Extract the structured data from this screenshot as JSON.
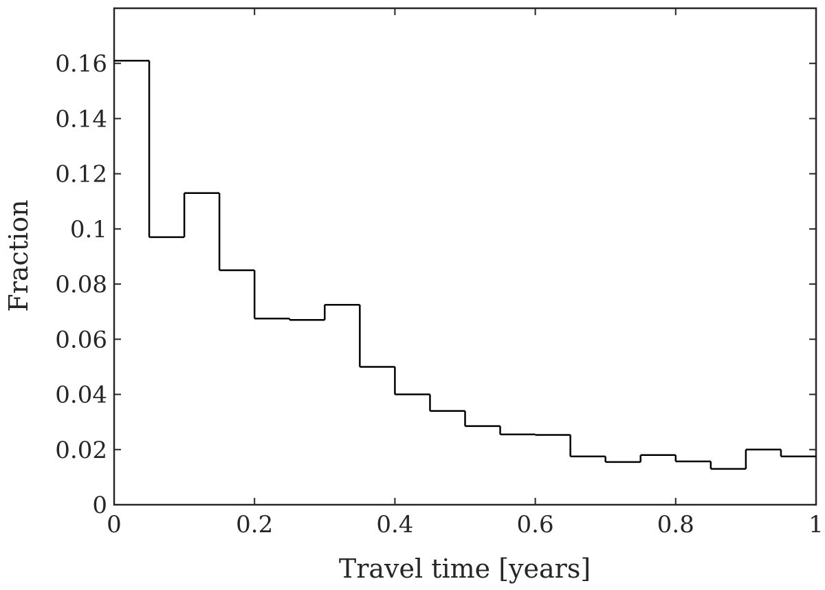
{
  "chart_data": {
    "type": "bar",
    "style": "stairs histogram",
    "xlabel": "Travel time [years]",
    "ylabel": "Fraction",
    "xlim": [
      0,
      1
    ],
    "ylim": [
      0,
      0.18
    ],
    "grid": false,
    "x_ticks": [
      {
        "value": 0,
        "label": "0"
      },
      {
        "value": 0.2,
        "label": "0.2"
      },
      {
        "value": 0.4,
        "label": "0.4"
      },
      {
        "value": 0.6,
        "label": "0.6"
      },
      {
        "value": 0.8,
        "label": "0.8"
      },
      {
        "value": 1,
        "label": "1"
      }
    ],
    "y_ticks": [
      {
        "value": 0,
        "label": "0"
      },
      {
        "value": 0.02,
        "label": "0.02"
      },
      {
        "value": 0.04,
        "label": "0.04"
      },
      {
        "value": 0.06,
        "label": "0.06"
      },
      {
        "value": 0.08,
        "label": "0.08"
      },
      {
        "value": 0.1,
        "label": "0.1"
      },
      {
        "value": 0.12,
        "label": "0.12"
      },
      {
        "value": 0.14,
        "label": "0.14"
      },
      {
        "value": 0.16,
        "label": "0.16"
      }
    ],
    "bin_edges": [
      0,
      0.05,
      0.1,
      0.15,
      0.2,
      0.25,
      0.3,
      0.35,
      0.4,
      0.45,
      0.5,
      0.55,
      0.6,
      0.65,
      0.7,
      0.75,
      0.8,
      0.85,
      0.9,
      0.95,
      1.0
    ],
    "values": [
      0.161,
      0.097,
      0.113,
      0.085,
      0.0675,
      0.067,
      0.0725,
      0.05,
      0.04,
      0.034,
      0.0285,
      0.0255,
      0.0253,
      0.0175,
      0.0155,
      0.018,
      0.0157,
      0.013,
      0.02,
      0.0175
    ],
    "colors": {
      "line": "#000000",
      "axis": "#262626"
    }
  }
}
